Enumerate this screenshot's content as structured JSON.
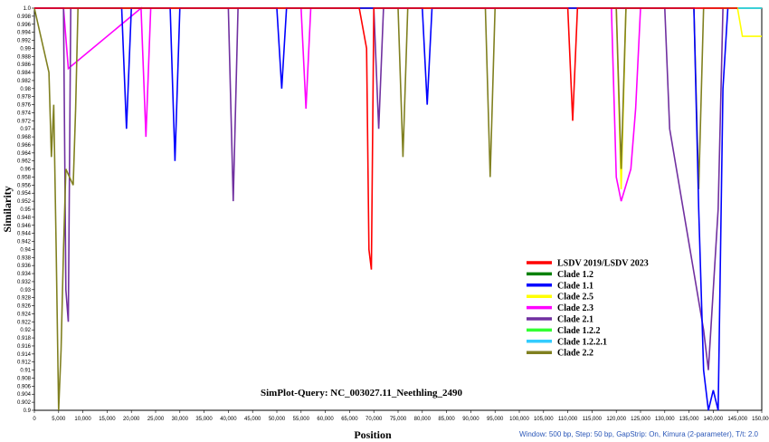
{
  "chart_data": {
    "type": "line",
    "title": "",
    "xlabel": "Position",
    "ylabel": "Similarity",
    "xlim": [
      0,
      150000
    ],
    "ylim": [
      0.9,
      1.0
    ],
    "x_ticks": [
      "0",
      "5,000",
      "10,000",
      "15,000",
      "20,000",
      "25,000",
      "30,000",
      "35,000",
      "40,000",
      "45,000",
      "50,000",
      "55,000",
      "60,000",
      "65,000",
      "70,000",
      "75,000",
      "80,000",
      "85,000",
      "90,000",
      "95,000",
      "100,000",
      "105,000",
      "110,000",
      "115,000",
      "120,000",
      "125,000",
      "130,000",
      "135,000",
      "140,000",
      "145,000",
      "150,000"
    ],
    "y_ticks": [
      "0.9",
      "0.902",
      "0.904",
      "0.906",
      "0.908",
      "0.91",
      "0.912",
      "0.914",
      "0.916",
      "0.918",
      "0.92",
      "0.922",
      "0.924",
      "0.926",
      "0.928",
      "0.93",
      "0.932",
      "0.934",
      "0.936",
      "0.938",
      "0.94",
      "0.942",
      "0.944",
      "0.946",
      "0.948",
      "0.95",
      "0.952",
      "0.954",
      "0.956",
      "0.958",
      "0.96",
      "0.962",
      "0.964",
      "0.966",
      "0.968",
      "0.97",
      "0.972",
      "0.974",
      "0.976",
      "0.978",
      "0.98",
      "0.982",
      "0.984",
      "0.986",
      "0.988",
      "0.99",
      "0.992",
      "0.994",
      "0.996",
      "0.998",
      "1.0"
    ],
    "legend_position": "bottom-right",
    "annotation": "SimPlot-Query: NC_003027.11_Neethling_2490",
    "footer": "Window: 500 bp, Step: 50 bp, GapStrip: On, Kimura (2-parameter), T/t: 2.0",
    "series": [
      {
        "name": "LSDV 2019/LSDV 2023",
        "color": "#ff0000",
        "x": [
          0,
          67000,
          68500,
          69000,
          69500,
          70000,
          110000,
          111000,
          112000,
          145000
        ],
        "y": [
          1.0,
          1.0,
          0.99,
          0.94,
          0.935,
          1.0,
          1.0,
          0.972,
          1.0,
          1.0
        ]
      },
      {
        "name": "Clade 1.2",
        "color": "#008000",
        "x": [
          0,
          150000
        ],
        "y": [
          1.0,
          1.0
        ]
      },
      {
        "name": "Clade 1.1",
        "color": "#0000ff",
        "x": [
          0,
          18000,
          19000,
          20000,
          28000,
          29000,
          30000,
          50000,
          51000,
          52000,
          80000,
          81000,
          82000,
          136000,
          137000,
          138000,
          139000,
          140000,
          141000,
          142000,
          143000
        ],
        "y": [
          1.0,
          1.0,
          0.97,
          1.0,
          1.0,
          0.962,
          1.0,
          1.0,
          0.98,
          1.0,
          1.0,
          0.976,
          1.0,
          1.0,
          0.95,
          0.91,
          0.9,
          0.905,
          0.9,
          0.98,
          1.0
        ]
      },
      {
        "name": "Clade 2.5",
        "color": "#ffff00",
        "x": [
          0,
          120000,
          121000,
          122000,
          145000,
          146000,
          150000
        ],
        "y": [
          1.0,
          1.0,
          0.955,
          1.0,
          1.0,
          0.993,
          0.993
        ]
      },
      {
        "name": "Clade 2.3",
        "color": "#ff00ff",
        "x": [
          0,
          6000,
          7000,
          22000,
          23000,
          24000,
          55000,
          56000,
          57000,
          119000,
          120000,
          121000,
          123000,
          124000,
          125000,
          142000
        ],
        "y": [
          1.0,
          1.0,
          0.985,
          1.0,
          0.968,
          1.0,
          1.0,
          0.975,
          1.0,
          1.0,
          0.958,
          0.952,
          0.96,
          0.975,
          1.0,
          1.0
        ]
      },
      {
        "name": "Clade 2.1",
        "color": "#7030a0",
        "x": [
          0,
          6000,
          6500,
          7000,
          7500,
          40000,
          41000,
          42000,
          70000,
          71000,
          72000,
          130000,
          131000,
          138000,
          139000,
          140000,
          141000,
          142000
        ],
        "y": [
          1.0,
          1.0,
          0.93,
          0.922,
          1.0,
          1.0,
          0.952,
          1.0,
          1.0,
          0.97,
          1.0,
          1.0,
          0.97,
          0.92,
          0.91,
          0.93,
          0.95,
          1.0
        ]
      },
      {
        "name": "Clade 1.2.2",
        "color": "#33ff33",
        "x": [
          0,
          150000
        ],
        "y": [
          1.0,
          1.0
        ]
      },
      {
        "name": "Clade 1.2.2.1",
        "color": "#33ccff",
        "x": [
          0,
          150000
        ],
        "y": [
          1.0,
          1.0
        ]
      },
      {
        "name": "Clade 2.2",
        "color": "#808020",
        "x": [
          0,
          3000,
          3500,
          4000,
          4500,
          5000,
          5500,
          6000,
          6500,
          8000,
          8500,
          9000,
          75000,
          76000,
          77000,
          93000,
          94000,
          95000,
          120000,
          121000,
          122000,
          136000,
          137000,
          138000,
          145000
        ],
        "y": [
          1.0,
          0.984,
          0.963,
          0.976,
          0.94,
          0.9,
          0.915,
          0.94,
          0.96,
          0.956,
          0.975,
          1.0,
          1.0,
          0.963,
          1.0,
          1.0,
          0.958,
          1.0,
          1.0,
          0.96,
          1.0,
          1.0,
          0.955,
          1.0,
          1.0
        ]
      }
    ]
  }
}
